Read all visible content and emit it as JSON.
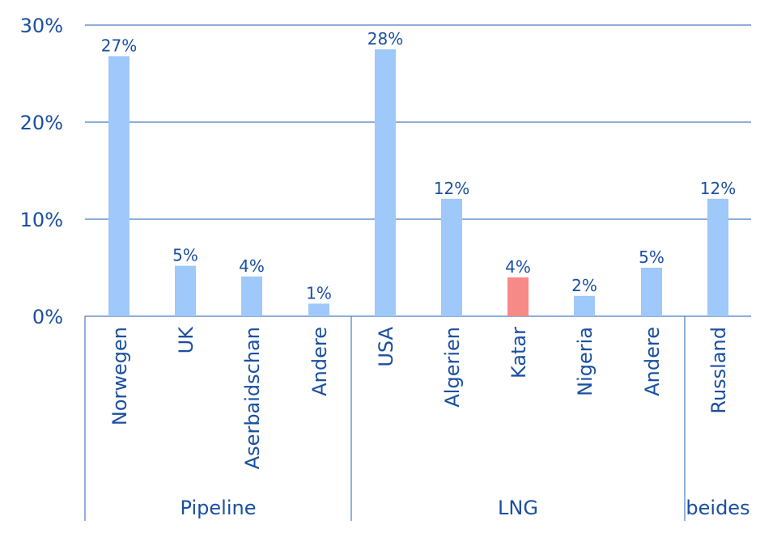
{
  "chart_data": {
    "type": "bar",
    "title": "",
    "xlabel": "",
    "ylabel": "",
    "ylim": [
      0,
      30
    ],
    "yticks": [
      "0%",
      "10%",
      "20%",
      "30%"
    ],
    "grid": true,
    "categories": [
      "Norwegen",
      "UK",
      "Aserbaidschan",
      "Andere",
      "USA",
      "Algerien",
      "Katar",
      "Nigeria",
      "Andere",
      "Russland"
    ],
    "values": [
      27,
      5,
      4,
      1,
      28,
      12,
      4,
      2,
      5,
      12
    ],
    "bar_heights": [
      26.8,
      5.2,
      4.1,
      1.3,
      27.5,
      12.1,
      4.0,
      2.1,
      5.0,
      12.1
    ],
    "data_labels": [
      "27%",
      "5%",
      "4%",
      "1%",
      "28%",
      "12%",
      "4%",
      "2%",
      "5%",
      "12%"
    ],
    "highlight_index": 6,
    "groups": [
      {
        "label": "Pipeline",
        "start": 0,
        "end": 3
      },
      {
        "label": "LNG",
        "start": 4,
        "end": 8
      },
      {
        "label": "beides",
        "start": 9,
        "end": 9
      }
    ],
    "colors": {
      "bar": "#9fc8fb",
      "highlight": "#f78a87",
      "text": "#1a4fa0",
      "grid": "#4a7cc4"
    }
  }
}
